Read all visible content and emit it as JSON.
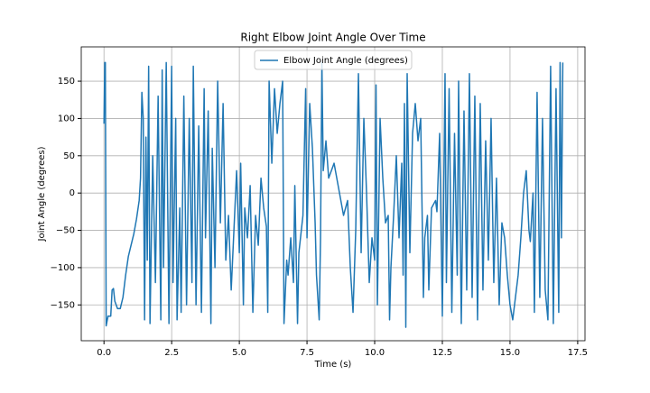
{
  "chart_data": {
    "type": "line",
    "title": "Right Elbow Joint Angle Over Time",
    "x_label": "Time (s)",
    "y_label": "Joint Angle (degrees)",
    "x": [
      0.0,
      0.03,
      0.05,
      0.08,
      0.15,
      0.25,
      0.3,
      0.35,
      0.4,
      0.5,
      0.6,
      0.7,
      0.8,
      0.9,
      1.0,
      1.1,
      1.2,
      1.3,
      1.35,
      1.4,
      1.45,
      1.5,
      1.55,
      1.6,
      1.65,
      1.7,
      1.8,
      1.9,
      2.0,
      2.1,
      2.15,
      2.2,
      2.3,
      2.4,
      2.5,
      2.55,
      2.65,
      2.7,
      2.8,
      2.85,
      2.95,
      3.05,
      3.15,
      3.25,
      3.3,
      3.4,
      3.5,
      3.6,
      3.7,
      3.75,
      3.85,
      3.95,
      4.0,
      4.1,
      4.2,
      4.3,
      4.4,
      4.5,
      4.6,
      4.7,
      4.8,
      4.9,
      5.0,
      5.05,
      5.15,
      5.2,
      5.3,
      5.4,
      5.5,
      5.6,
      5.7,
      5.8,
      5.9,
      6.0,
      6.05,
      6.1,
      6.2,
      6.3,
      6.4,
      6.5,
      6.6,
      6.65,
      6.75,
      6.8,
      6.9,
      7.0,
      7.05,
      7.15,
      7.2,
      7.35,
      7.45,
      7.5,
      7.6,
      7.7,
      7.8,
      7.85,
      7.95,
      8.0,
      8.05,
      8.1,
      8.2,
      8.3,
      8.5,
      8.7,
      8.85,
      9.0,
      9.1,
      9.2,
      9.3,
      9.4,
      9.5,
      9.6,
      9.7,
      9.8,
      9.9,
      10.0,
      10.05,
      10.1,
      10.2,
      10.3,
      10.4,
      10.5,
      10.55,
      10.6,
      10.7,
      10.8,
      10.9,
      11.0,
      11.05,
      11.1,
      11.15,
      11.2,
      11.3,
      11.4,
      11.5,
      11.6,
      11.7,
      11.8,
      11.85,
      11.95,
      12.0,
      12.1,
      12.25,
      12.3,
      12.4,
      12.5,
      12.6,
      12.65,
      12.75,
      12.85,
      12.95,
      13.05,
      13.1,
      13.2,
      13.3,
      13.4,
      13.5,
      13.6,
      13.7,
      13.8,
      13.9,
      14.0,
      14.1,
      14.2,
      14.3,
      14.4,
      14.5,
      14.6,
      14.7,
      14.8,
      14.9,
      15.0,
      15.1,
      15.2,
      15.3,
      15.4,
      15.5,
      15.6,
      15.7,
      15.75,
      15.85,
      15.9,
      16.0,
      16.1,
      16.2,
      16.3,
      16.4,
      16.5,
      16.6,
      16.7,
      16.8,
      16.85,
      16.9,
      16.95
    ],
    "series": [
      {
        "name": "Elbow Joint Angle (degrees)",
        "color": "#1f77b4",
        "values": [
          93,
          175,
          175,
          -178,
          -165,
          -165,
          -130,
          -128,
          -145,
          -155,
          -155,
          -140,
          -110,
          -85,
          -70,
          -55,
          -35,
          -10,
          20,
          135,
          100,
          -170,
          75,
          -90,
          170,
          -175,
          50,
          -120,
          130,
          -170,
          165,
          -100,
          175,
          -175,
          170,
          -120,
          100,
          -170,
          -20,
          -160,
          130,
          -150,
          100,
          -120,
          170,
          -150,
          90,
          -160,
          140,
          -60,
          110,
          -175,
          60,
          -100,
          150,
          -40,
          120,
          -90,
          -30,
          -130,
          -50,
          30,
          -80,
          40,
          -150,
          -20,
          -60,
          10,
          -160,
          -30,
          -70,
          20,
          -20,
          -45,
          -160,
          150,
          40,
          140,
          80,
          120,
          150,
          -175,
          -90,
          -110,
          -60,
          -120,
          10,
          -175,
          -80,
          -30,
          140,
          -60,
          120,
          60,
          -40,
          -110,
          -170,
          -60,
          175,
          30,
          70,
          20,
          40,
          0,
          -30,
          -10,
          -100,
          -160,
          -50,
          160,
          -80,
          100,
          0,
          -120,
          -60,
          -90,
          145,
          -150,
          100,
          20,
          -40,
          -30,
          -170,
          -100,
          -30,
          50,
          -60,
          40,
          -110,
          120,
          -180,
          160,
          -80,
          80,
          120,
          70,
          100,
          -140,
          -60,
          -30,
          -130,
          -20,
          -10,
          -25,
          80,
          -165,
          160,
          -120,
          140,
          -160,
          80,
          -110,
          150,
          -175,
          110,
          -130,
          160,
          -140,
          130,
          -170,
          120,
          -130,
          70,
          -90,
          100,
          -120,
          20,
          -150,
          -40,
          -60,
          -110,
          -150,
          -170,
          -140,
          -110,
          -60,
          0,
          30,
          -50,
          -65,
          0,
          -160,
          135,
          -140,
          100,
          -130,
          -170,
          170,
          -175,
          140,
          -160,
          175,
          -60,
          175
        ]
      }
    ],
    "xlim": [
      -0.84,
      17.77
    ],
    "ylim": [
      -198,
      196
    ],
    "xticks": [
      {
        "value": 0,
        "label": "0.0"
      },
      2.5,
      {
        "value": 5,
        "label": "5.0"
      },
      7.5,
      {
        "value": 10,
        "label": "10.0"
      },
      12.5,
      {
        "value": 15,
        "label": "15.0"
      },
      17.5
    ],
    "yticks": [
      {
        "value": -150,
        "label": "−150"
      },
      {
        "value": -100,
        "label": "−100"
      },
      {
        "value": -50,
        "label": "−50"
      },
      0,
      50,
      100,
      150
    ],
    "grid": true,
    "legend": "upper center"
  }
}
